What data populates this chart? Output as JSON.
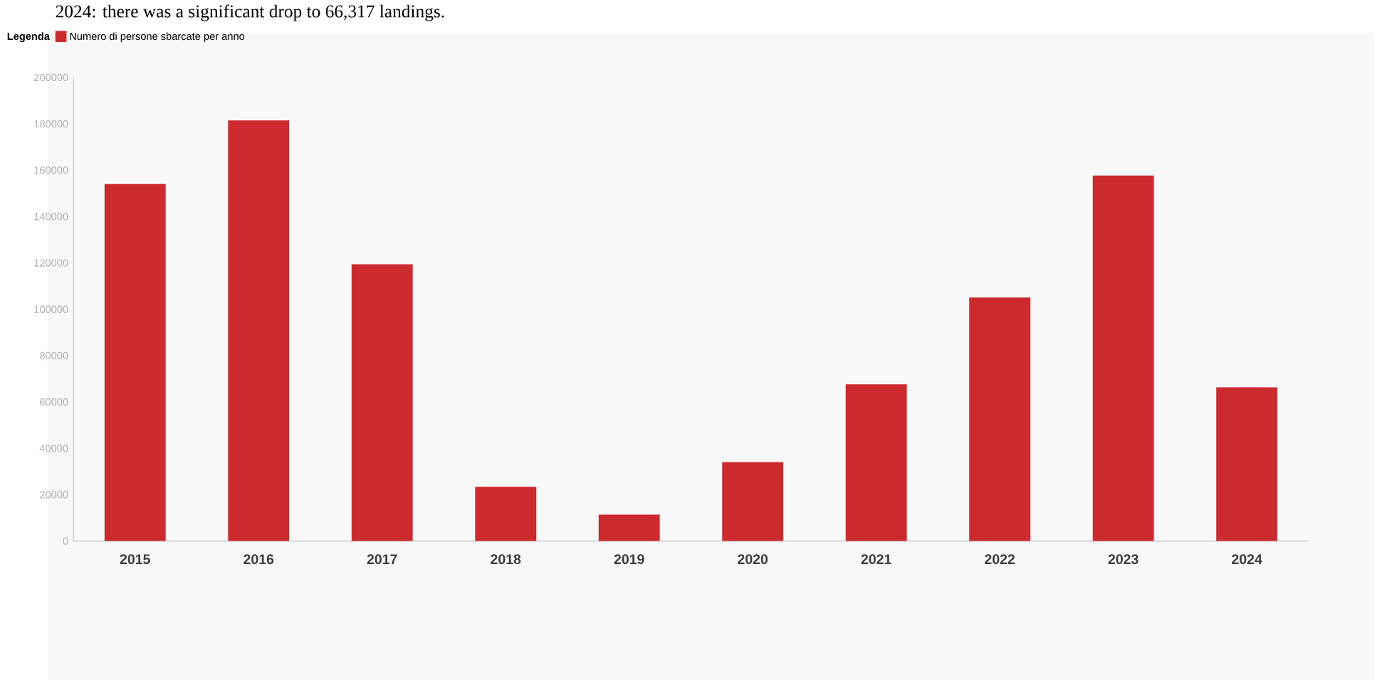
{
  "chart_data": {
    "type": "bar",
    "annotations": [
      "2024: there was a significant drop to 66,317 landings."
    ],
    "legend_title": "Legenda",
    "legend": "top left",
    "categories": [
      "2015",
      "2016",
      "2017",
      "2018",
      "2019",
      "2020",
      "2021",
      "2022",
      "2023",
      "2024"
    ],
    "series": [
      {
        "name": "Numero di persone sbarcate per anno",
        "color": "#cd2a30",
        "values": [
          154000,
          181500,
          119400,
          23400,
          11400,
          34000,
          67600,
          105100,
          157700,
          66300
        ]
      }
    ],
    "ylim": [
      0,
      200000
    ],
    "yticks": [
      0,
      20000,
      40000,
      60000,
      80000,
      100000,
      120000,
      140000,
      160000,
      180000,
      200000
    ]
  }
}
